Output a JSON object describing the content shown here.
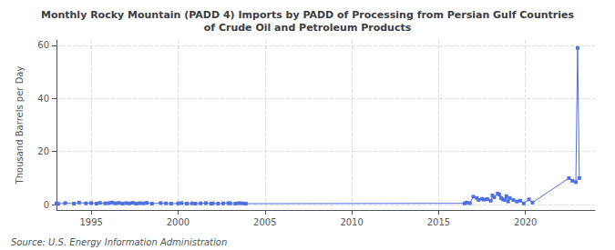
{
  "chart_data": {
    "type": "line",
    "title": "Monthly Rocky Mountain (PADD 4) Imports by PADD of Processing from Persian Gulf Countries\nof Crude Oil and Petroleum Products",
    "ylabel": "Thousand Barrels per Day",
    "annotations": [
      "Source: U.S. Energy Information Administration"
    ],
    "x": [
      1993.0,
      1993.1,
      1993.5,
      1994.0,
      1994.3,
      1994.7,
      1995.0,
      1995.3,
      1995.5,
      1995.8,
      1996.0,
      1996.2,
      1996.4,
      1996.6,
      1996.8,
      1997.0,
      1997.2,
      1997.4,
      1997.6,
      1997.8,
      1998.0,
      1998.2,
      1998.5,
      1999.0,
      1999.3,
      1999.6,
      2000.0,
      2000.2,
      2000.5,
      2000.8,
      2001.0,
      2001.3,
      2001.6,
      2001.9,
      2002.0,
      2002.3,
      2002.6,
      2002.9,
      2003.0,
      2003.3,
      2003.5,
      2003.7,
      2003.9,
      2016.5,
      2016.6,
      2016.8,
      2017.0,
      2017.2,
      2017.3,
      2017.5,
      2017.6,
      2017.8,
      2018.0,
      2018.1,
      2018.2,
      2018.4,
      2018.5,
      2018.6,
      2018.7,
      2018.8,
      2018.9,
      2019.0,
      2019.1,
      2019.3,
      2019.5,
      2019.7,
      2019.9,
      2020.2,
      2020.4,
      2022.5,
      2022.7,
      2022.9,
      2023.0,
      2023.1
    ],
    "values": [
      0.5,
      0.3,
      0.6,
      0.4,
      0.8,
      0.5,
      0.6,
      0.4,
      0.7,
      0.5,
      0.6,
      0.8,
      0.5,
      0.7,
      0.4,
      0.6,
      0.5,
      0.7,
      0.4,
      0.6,
      0.5,
      0.7,
      0.4,
      0.6,
      0.5,
      0.4,
      0.5,
      0.6,
      0.4,
      0.5,
      0.4,
      0.5,
      0.6,
      0.4,
      0.5,
      0.4,
      0.5,
      0.6,
      0.5,
      0.4,
      0.6,
      0.5,
      0.4,
      0.5,
      0.8,
      0.6,
      3.0,
      2.5,
      1.8,
      2.2,
      1.9,
      2.1,
      1.5,
      3.5,
      2.8,
      4.2,
      3.8,
      2.5,
      2.0,
      1.8,
      3.2,
      1.2,
      2.5,
      1.8,
      1.2,
      1.5,
      0.5,
      2.0,
      0.8,
      10.0,
      9.0,
      8.5,
      59.0,
      10.0
    ],
    "xlim": [
      1993,
      2024
    ],
    "ylim": [
      -2,
      62
    ],
    "xticks": [
      1995,
      2000,
      2005,
      2010,
      2015,
      2020
    ],
    "yticks": [
      0,
      20,
      40,
      60
    ],
    "marker": "square",
    "grid": true
  }
}
